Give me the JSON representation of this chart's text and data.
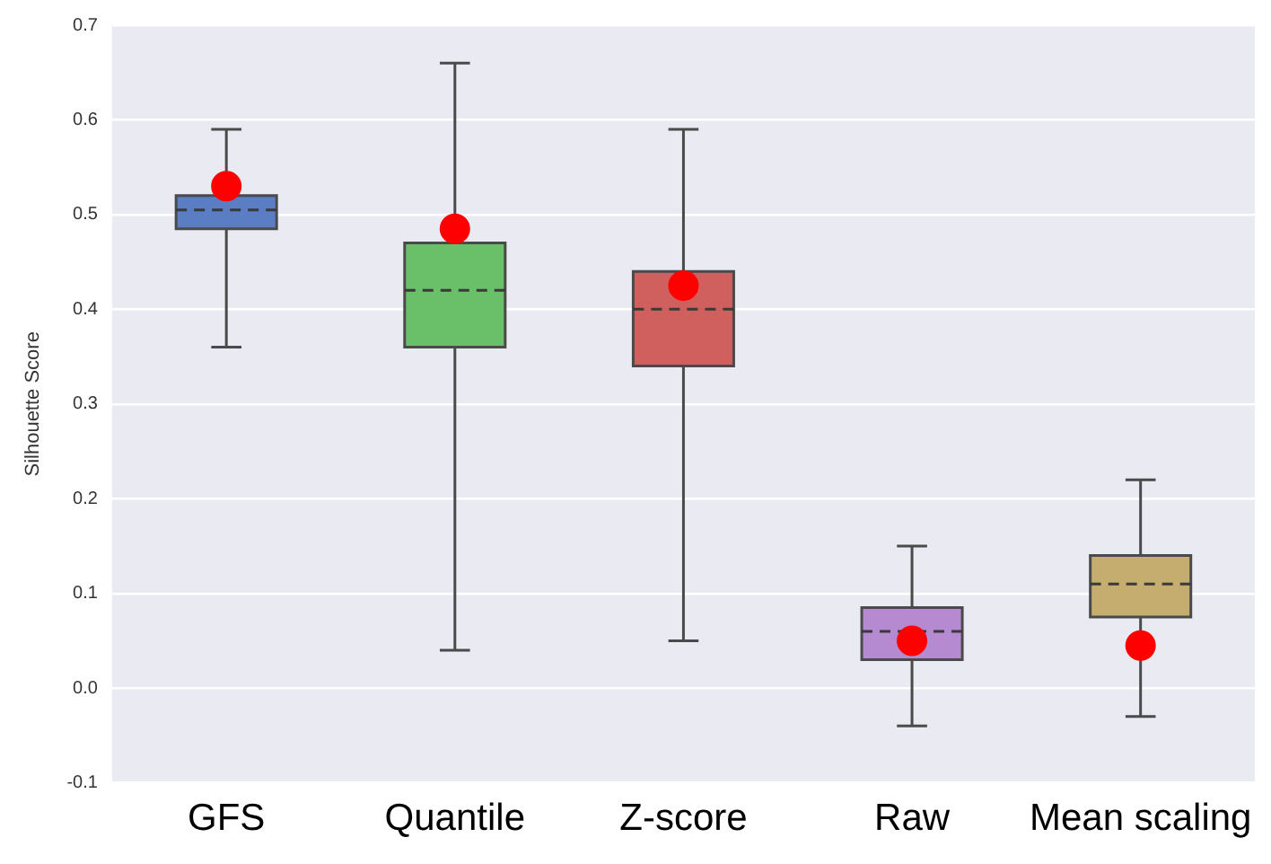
{
  "chart_data": {
    "type": "box",
    "ylabel": "Silhouette Score",
    "categories": [
      "GFS",
      "Quantile",
      "Z-score",
      "Raw",
      "Mean scaling"
    ],
    "series": [
      {
        "type": "box",
        "colors": [
          "#5a7dc4",
          "#6abf69",
          "#d0605e",
          "#b58ad0",
          "#c4ad6e"
        ],
        "boxes": [
          {
            "low": 0.36,
            "q1": 0.485,
            "median": 0.505,
            "q3": 0.52,
            "high": 0.59
          },
          {
            "low": 0.04,
            "q1": 0.36,
            "median": 0.42,
            "q3": 0.47,
            "high": 0.66
          },
          {
            "low": 0.05,
            "q1": 0.34,
            "median": 0.4,
            "q3": 0.44,
            "high": 0.59
          },
          {
            "low": -0.04,
            "q1": 0.03,
            "median": 0.06,
            "q3": 0.085,
            "high": 0.15
          },
          {
            "low": -0.03,
            "q1": 0.075,
            "median": 0.11,
            "q3": 0.14,
            "high": 0.22
          }
        ]
      },
      {
        "type": "scatter",
        "color": "#ff0000",
        "x": [
          "GFS",
          "Quantile",
          "Z-score",
          "Raw",
          "Mean scaling"
        ],
        "values": [
          0.53,
          0.485,
          0.425,
          0.05,
          0.045
        ]
      }
    ],
    "ylim": [
      -0.1,
      0.7
    ],
    "yticks": [
      -0.1,
      {
        "value": 0,
        "label": "0.0"
      },
      0.1,
      0.2,
      0.3,
      0.4,
      0.5,
      0.6,
      0.7
    ],
    "grid": "y",
    "marker": "circle"
  }
}
